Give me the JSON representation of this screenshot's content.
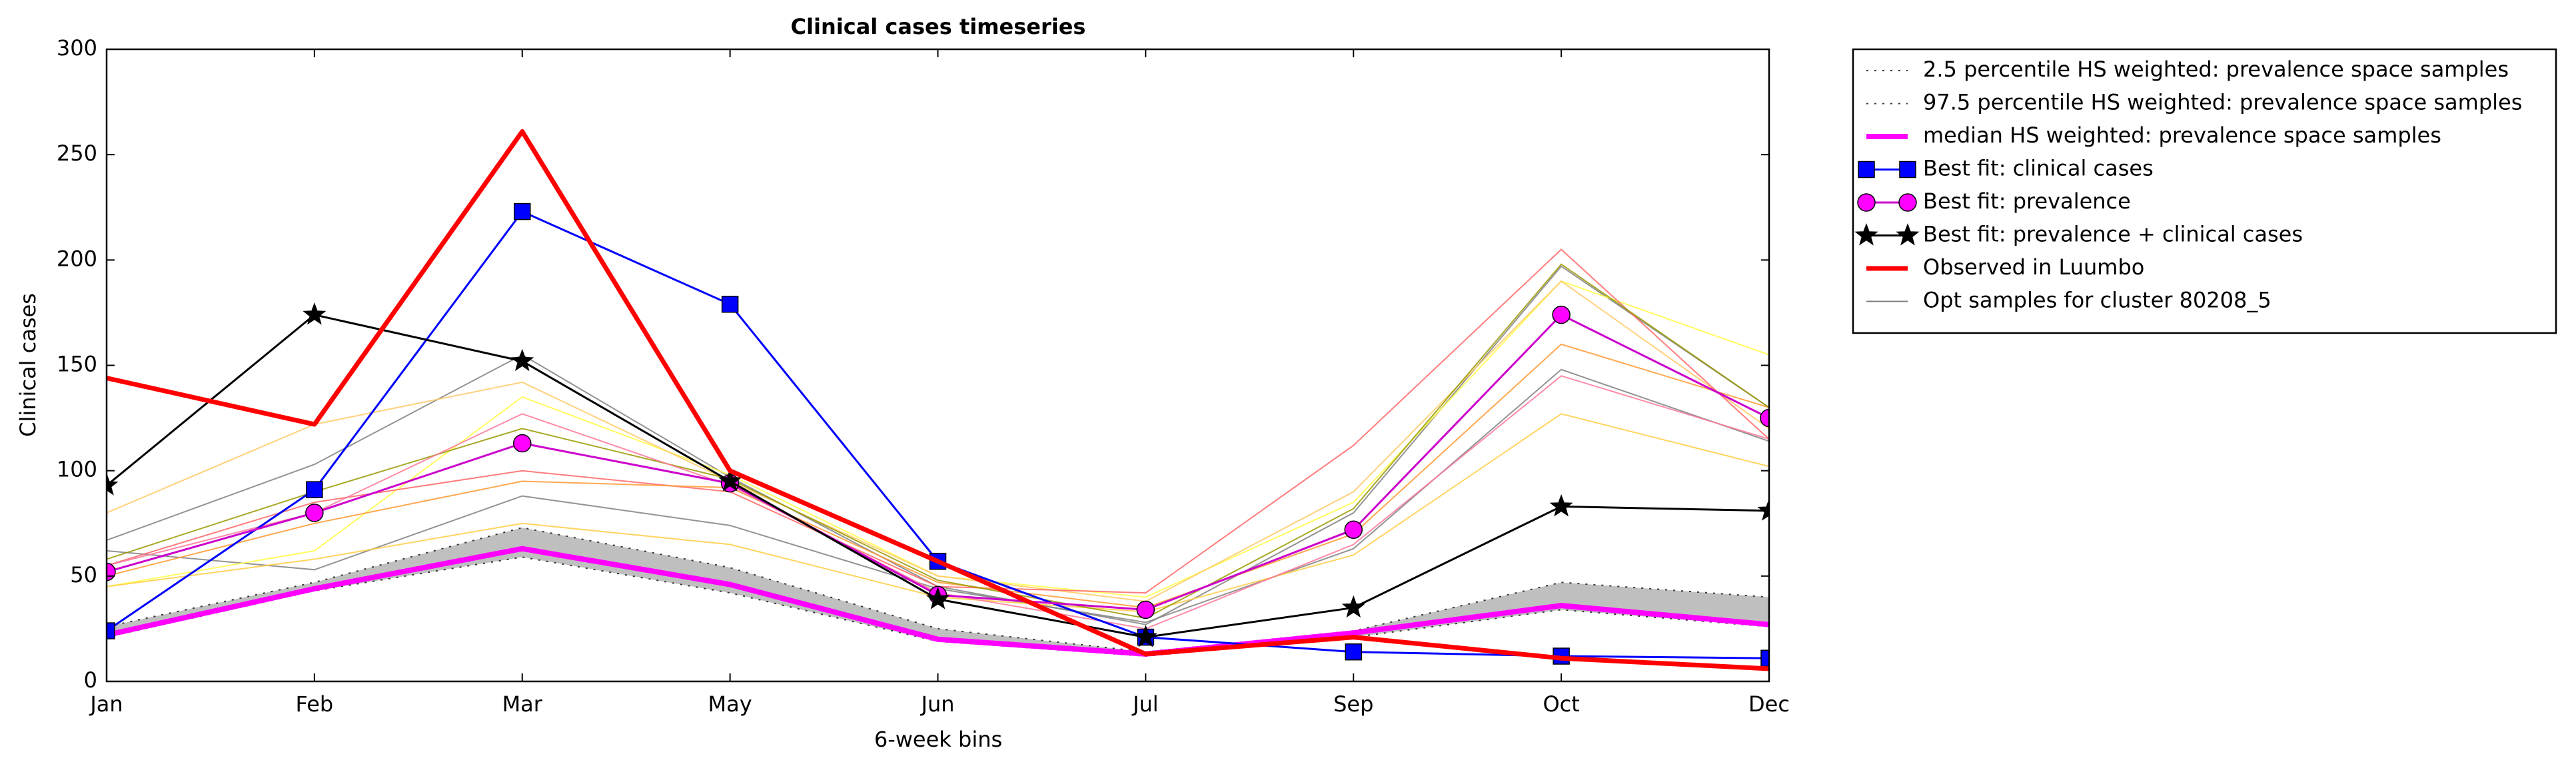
{
  "chart_data": {
    "type": "line",
    "title": "Clinical cases timeseries",
    "xlabel": "6-week bins",
    "ylabel": "Clinical cases",
    "categories": [
      "Jan",
      "Feb",
      "Mar",
      "May",
      "Jun",
      "Jul",
      "Sep",
      "Oct",
      "Dec"
    ],
    "ylim": [
      0,
      300
    ],
    "yticks": [
      0,
      50,
      100,
      150,
      200,
      250,
      300
    ],
    "grid": false,
    "legend": "outside-right",
    "band": {
      "color": "#bfbfbf"
    },
    "series": [
      {
        "name": "2.5 percentile HS weighted: prevalence space samples",
        "color": "#333333",
        "linestyle": "dotted",
        "linewidth": 2,
        "values": [
          21,
          43,
          59,
          42,
          19,
          12,
          21,
          34,
          26
        ]
      },
      {
        "name": "97.5 percentile HS weighted: prevalence space samples",
        "color": "#333333",
        "linestyle": "dotted",
        "linewidth": 2,
        "values": [
          26,
          47,
          73,
          54,
          25,
          14,
          24,
          47,
          40
        ]
      },
      {
        "name": "median HS weighted: prevalence space samples",
        "color": "#ff00ff",
        "linestyle": "solid",
        "linewidth": 8,
        "values": [
          22,
          44,
          63,
          46,
          20,
          13,
          23,
          36,
          27
        ]
      },
      {
        "name": "Best fit: clinical cases",
        "color": "#0000ff",
        "linestyle": "solid",
        "linewidth": 3,
        "marker": "square",
        "values": [
          24,
          91,
          223,
          179,
          57,
          21,
          14,
          12,
          11
        ]
      },
      {
        "name": "Best fit: prevalence",
        "color": "#cc00cc",
        "markerfill": "#ff00ff",
        "linestyle": "solid",
        "linewidth": 3,
        "marker": "circle",
        "values": [
          52,
          80,
          113,
          94,
          41,
          34,
          72,
          174,
          125
        ]
      },
      {
        "name": "Best fit: prevalence + clinical cases",
        "color": "#000000",
        "linestyle": "solid",
        "linewidth": 3,
        "marker": "star",
        "values": [
          93,
          174,
          152,
          95,
          39,
          21,
          35,
          83,
          81
        ]
      },
      {
        "name": "Observed in Luumbo",
        "color": "#ff0000",
        "linestyle": "solid",
        "linewidth": 7,
        "values": [
          144,
          122,
          261,
          100,
          57,
          13,
          21,
          11,
          6
        ]
      },
      {
        "name": "Opt samples for cluster 80208_5",
        "color": "#808080",
        "linestyle": "solid",
        "linewidth": 2,
        "samples": [
          {
            "color": "#808080",
            "values": [
              67,
              103,
              155,
              97,
              45,
              27,
              80,
              197,
              130
            ]
          },
          {
            "color": "#808080",
            "values": [
              62,
              53,
              88,
              74,
              44,
              28,
              63,
              148,
              114
            ]
          },
          {
            "color": "#ffff44",
            "values": [
              45,
              62,
              135,
              98,
              50,
              40,
              85,
              190,
              155
            ]
          },
          {
            "color": "#ffc966",
            "values": [
              80,
              122,
              142,
              95,
              50,
              38,
              90,
              190,
              120
            ]
          },
          {
            "color": "#ff6666",
            "values": [
              55,
              85,
              100,
              90,
              45,
              42,
              112,
              205,
              115
            ]
          },
          {
            "color": "#ff9933",
            "values": [
              50,
              75,
              95,
              92,
              47,
              35,
              70,
              160,
              130
            ]
          },
          {
            "color": "#ffcc44",
            "values": [
              45,
              58,
              75,
              65,
              40,
              33,
              60,
              127,
              102
            ]
          },
          {
            "color": "#999900",
            "values": [
              58,
              90,
              120,
              96,
              48,
              30,
              82,
              198,
              130
            ]
          },
          {
            "color": "#ff7799",
            "values": [
              55,
              80,
              127,
              93,
              42,
              25,
              65,
              145,
              115
            ]
          }
        ]
      }
    ]
  }
}
